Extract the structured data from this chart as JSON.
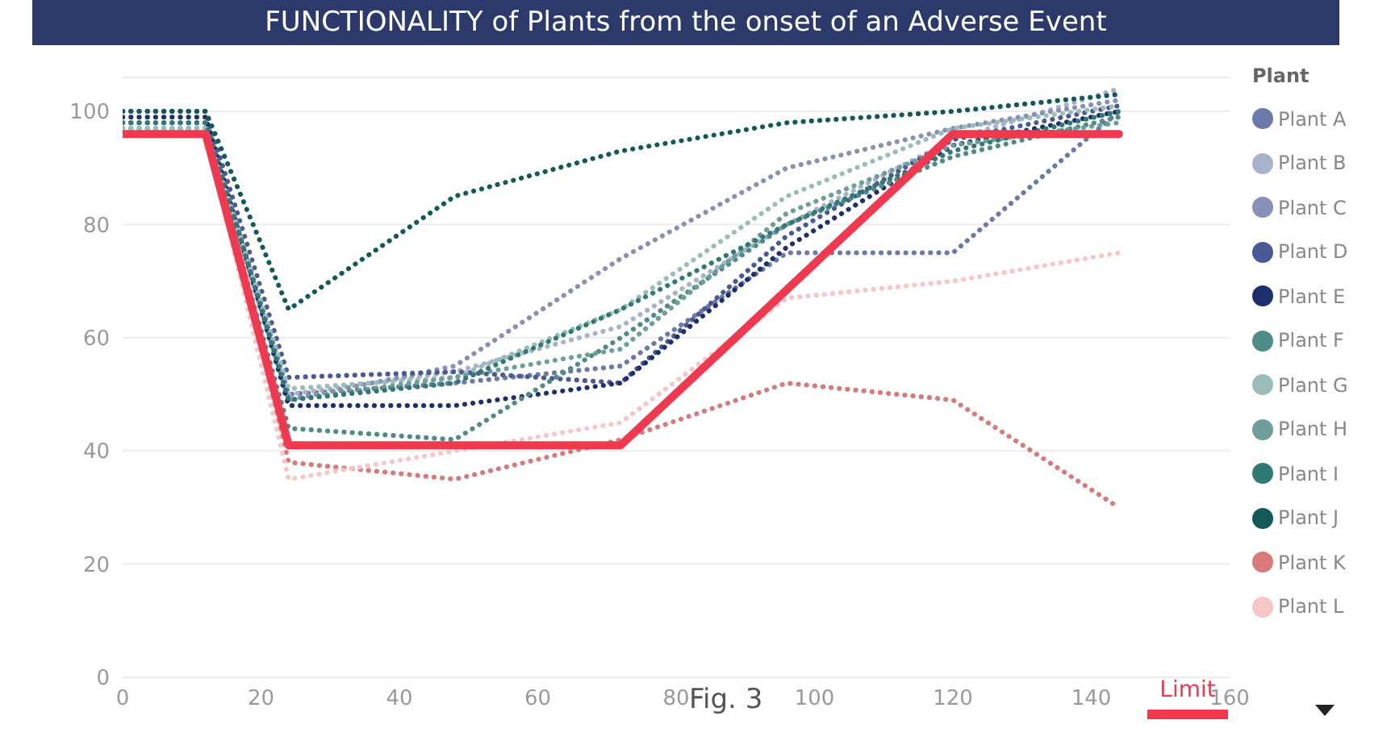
{
  "chart_data": {
    "type": "line",
    "title": "FUNCTIONALITY of Plants from the onset of an Adverse Event",
    "x": [
      0,
      12,
      24,
      48,
      72,
      96,
      120,
      144
    ],
    "series": [
      {
        "name": "Plant A",
        "color": "#6b7aa8",
        "line_style": "dotted",
        "values": [
          98,
          98,
          50,
          52,
          55,
          75,
          75,
          100
        ]
      },
      {
        "name": "Plant B",
        "color": "#a9b2cc",
        "line_style": "dotted",
        "values": [
          97,
          97,
          50,
          54,
          62,
          80,
          95,
          104
        ]
      },
      {
        "name": "Plant C",
        "color": "#8890b5",
        "line_style": "dotted",
        "values": [
          97,
          97,
          49,
          55,
          74,
          90,
          97,
          102
        ]
      },
      {
        "name": "Plant D",
        "color": "#4a5a96",
        "line_style": "dotted",
        "values": [
          100,
          100,
          53,
          54,
          52,
          78,
          95,
          101
        ]
      },
      {
        "name": "Plant E",
        "color": "#1e2f6e",
        "line_style": "dotted",
        "values": [
          99,
          99,
          48,
          48,
          52,
          76,
          94,
          100
        ]
      },
      {
        "name": "Plant F",
        "color": "#4f8c88",
        "line_style": "dotted",
        "values": [
          96,
          96,
          44,
          42,
          60,
          80,
          92,
          99
        ]
      },
      {
        "name": "Plant G",
        "color": "#9bbdb9",
        "line_style": "dotted",
        "values": [
          97,
          97,
          51,
          53,
          65,
          85,
          97,
          101
        ]
      },
      {
        "name": "Plant H",
        "color": "#6e9e9a",
        "line_style": "dotted",
        "values": [
          98,
          98,
          49,
          53,
          58,
          82,
          94,
          98
        ]
      },
      {
        "name": "Plant I",
        "color": "#2f7a72",
        "line_style": "dotted",
        "values": [
          98,
          98,
          49,
          52,
          65,
          80,
          93,
          100
        ]
      },
      {
        "name": "Plant J",
        "color": "#125a5a",
        "line_style": "dotted",
        "values": [
          100,
          100,
          65,
          85,
          93,
          98,
          100,
          103
        ]
      },
      {
        "name": "Plant K",
        "color": "#d97a7a",
        "line_style": "dotted",
        "values": [
          96,
          96,
          38,
          35,
          42,
          52,
          49,
          30
        ]
      },
      {
        "name": "Plant L",
        "color": "#f7c6c8",
        "line_style": "dotted",
        "values": [
          96,
          96,
          35,
          40,
          45,
          67,
          70,
          75
        ]
      },
      {
        "name": "Limit",
        "color": "#f0394f",
        "line_style": "solid",
        "x": [
          0,
          12,
          24,
          72,
          120,
          144
        ],
        "values": [
          96,
          96,
          41,
          41,
          96,
          96
        ]
      }
    ],
    "xlim": [
      0,
      160
    ],
    "xticks": [
      0,
      20,
      40,
      60,
      80,
      100,
      120,
      140,
      160
    ],
    "ylim": [
      0,
      106
    ],
    "yticks": [
      0,
      20,
      40,
      60,
      80,
      100
    ],
    "grid": "y",
    "legend": "right",
    "legend_title": "Plant",
    "marker": "none",
    "annotations": [
      "Fig. 3"
    ]
  }
}
